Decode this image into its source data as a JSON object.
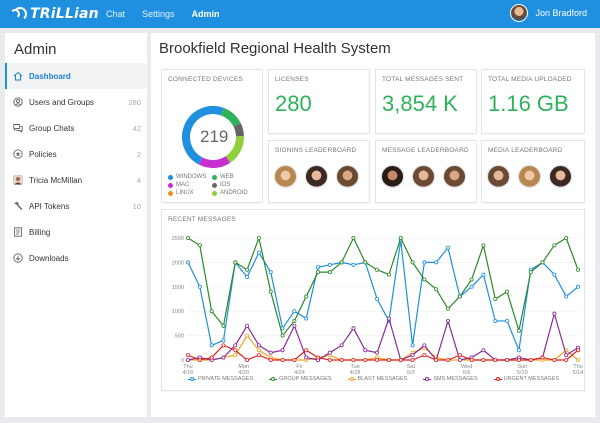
{
  "app": {
    "logo_text": "TRiLLian"
  },
  "nav": [
    {
      "label": "Chat",
      "active": false
    },
    {
      "label": "Settings",
      "active": false
    },
    {
      "label": "Admin",
      "active": true
    }
  ],
  "user": {
    "name": "Jon Bradford"
  },
  "sidebar": {
    "title": "Admin",
    "items": [
      {
        "label": "Dashboard",
        "count": "",
        "icon": "home-icon",
        "active": true
      },
      {
        "label": "Users and Groups",
        "count": "280",
        "icon": "user-circle-icon"
      },
      {
        "label": "Group Chats",
        "count": "42",
        "icon": "chat-bubbles-icon"
      },
      {
        "label": "Policies",
        "count": "2",
        "icon": "badge-icon"
      },
      {
        "label": "Tricia McMillan",
        "count": "4",
        "icon": "person-icon"
      },
      {
        "label": "API Tokens",
        "count": "10",
        "icon": "hammer-icon"
      },
      {
        "label": "Billing",
        "count": "",
        "icon": "document-icon"
      },
      {
        "label": "Downloads",
        "count": "",
        "icon": "download-icon"
      }
    ]
  },
  "main": {
    "title": "Brookfield Regional Health System",
    "connected_devices": {
      "title": "CONNECTED DEVICES",
      "total": "219",
      "legend": [
        {
          "label": "WINDOWS",
          "color": "#1f8fe0"
        },
        {
          "label": "WEB",
          "color": "#2fb35a"
        },
        {
          "label": "MAC",
          "color": "#c72fd0"
        },
        {
          "label": "IOS",
          "color": "#666666"
        },
        {
          "label": "LINUX",
          "color": "#f28c1e"
        },
        {
          "label": "ANDROID",
          "color": "#8fcf3a"
        }
      ]
    },
    "licenses": {
      "title": "LICENSES",
      "value": "280"
    },
    "total_messages": {
      "title": "TOTAL MESSAGES SENT",
      "value": "3,854 K"
    },
    "total_media": {
      "title": "TOTAL MEDIA UPLOADED",
      "value": "1.16 GB"
    },
    "signins_leaderboard": {
      "title": "SIGNINS LEADERBOARD"
    },
    "message_leaderboard": {
      "title": "MESSAGE LEADERBOARD"
    },
    "media_leaderboard": {
      "title": "MEDIA LEADERBOARD"
    },
    "recent_messages_title": "RECENT MESSAGES"
  },
  "chart_data": {
    "type": "line",
    "title": "RECENT MESSAGES",
    "ylim": [
      0,
      2500
    ],
    "yticks": [
      "2500",
      "2000",
      "1500",
      "1000",
      "500",
      "0"
    ],
    "xtick_labels": [
      {
        "day": "Thu",
        "date": "4/16"
      },
      {
        "day": "Mon",
        "date": "4/20"
      },
      {
        "day": "Fri",
        "date": "4/24"
      },
      {
        "day": "Tue",
        "date": "4/28"
      },
      {
        "day": "Sat",
        "date": "5/2"
      },
      {
        "day": "Wed",
        "date": "5/6"
      },
      {
        "day": "Sun",
        "date": "5/10"
      },
      {
        "day": "Thu",
        "date": "5/14"
      }
    ],
    "series": [
      {
        "name": "PRIVATE MESSAGES",
        "color": "#1f8fe0",
        "values": [
          2000,
          1500,
          300,
          400,
          2000,
          1700,
          2200,
          1800,
          650,
          1000,
          850,
          1900,
          1950,
          2000,
          1950,
          2000,
          1250,
          800,
          2450,
          300,
          2000,
          2000,
          2300,
          1300,
          1500,
          1750,
          800,
          800,
          200,
          1850,
          2000,
          1750,
          1300,
          1500
        ]
      },
      {
        "name": "GROUP MESSAGES",
        "color": "#2a8a2a",
        "values": [
          2500,
          2350,
          1000,
          700,
          2000,
          1850,
          2500,
          1400,
          500,
          800,
          1300,
          1800,
          1800,
          2000,
          2500,
          2000,
          1850,
          1750,
          2500,
          2000,
          1650,
          1450,
          1050,
          1300,
          1650,
          2350,
          1250,
          1400,
          600,
          1800,
          2000,
          2350,
          2500,
          1850
        ]
      },
      {
        "name": "BLAST MESSAGES",
        "color": "#f2a51e",
        "values": [
          0,
          0,
          0,
          50,
          100,
          500,
          200,
          50,
          0,
          0,
          0,
          50,
          100,
          0,
          0,
          0,
          50,
          0,
          0,
          150,
          250,
          50,
          0,
          0,
          0,
          0,
          0,
          0,
          0,
          0,
          0,
          0,
          200,
          0
        ]
      },
      {
        "name": "SMS MESSAGES",
        "color": "#8a2a9a",
        "values": [
          0,
          50,
          0,
          50,
          300,
          700,
          300,
          150,
          200,
          700,
          50,
          0,
          150,
          300,
          650,
          200,
          150,
          850,
          0,
          100,
          300,
          0,
          800,
          0,
          50,
          200,
          0,
          0,
          50,
          0,
          50,
          950,
          100,
          250
        ]
      },
      {
        "name": "URGENT MESSAGES",
        "color": "#e02020",
        "values": [
          100,
          0,
          50,
          300,
          200,
          0,
          100,
          0,
          0,
          0,
          200,
          50,
          0,
          0,
          0,
          0,
          0,
          0,
          0,
          0,
          100,
          0,
          0,
          100,
          0,
          0,
          0,
          0,
          0,
          0,
          50,
          0,
          0,
          200
        ]
      }
    ]
  }
}
